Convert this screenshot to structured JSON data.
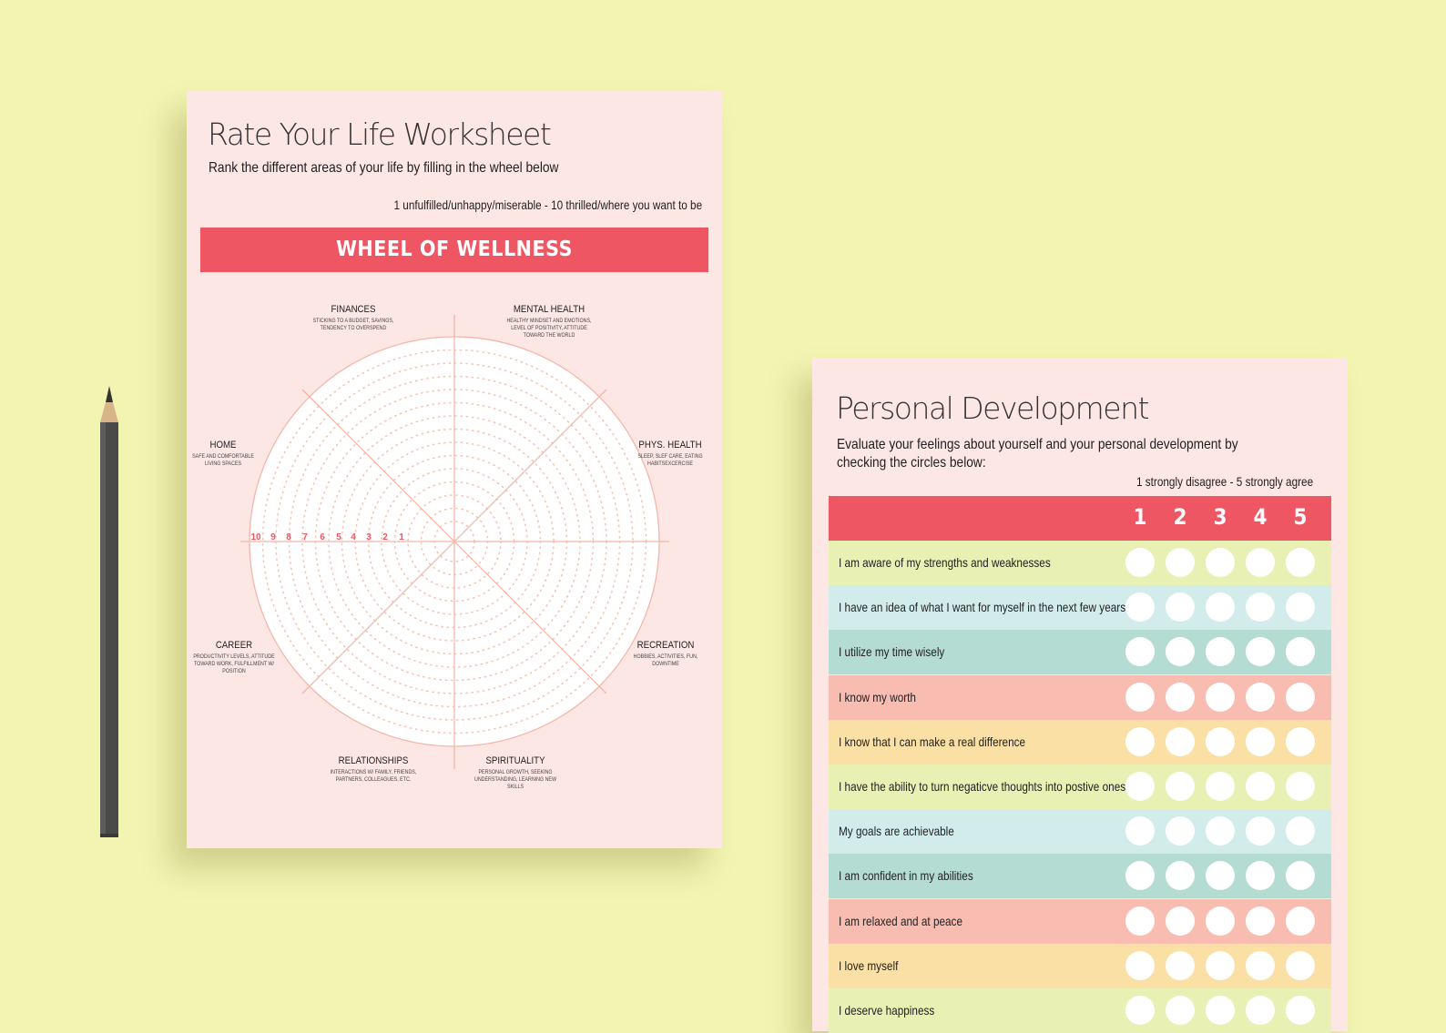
{
  "worksheet": {
    "title": "Rate Your Life Worksheet",
    "subtitle": "Rank the different areas of your life by filling in the wheel below",
    "scale_note": "1 unfulfilled/unhappy/miserable - 10 thrilled/where you want to be",
    "banner": "WHEEL OF WELLNESS",
    "ring_numbers": [
      "10",
      "9",
      "8",
      "7",
      "6",
      "5",
      "4",
      "3",
      "2",
      "1"
    ],
    "areas": [
      {
        "name": "FINANCES",
        "desc": [
          "STICKING TO A BUDGET, SAVINGS,",
          "TENDENCY TO OVERSPEND"
        ]
      },
      {
        "name": "MENTAL HEALTH",
        "desc": [
          "HEALTHY MINDSET AND EMOTIONS,",
          "LEVEL OF POSITIVITY, ATTITUDE",
          "TOWARD THE WORLD"
        ]
      },
      {
        "name": "PHYS. HEALTH",
        "desc": [
          "SLEEP, SLEF CARE, EATING",
          "HABITSEXCERCISE"
        ]
      },
      {
        "name": "RECREATION",
        "desc": [
          "HOBBIES, ACTIVITIES, FUN,",
          "DOWNTIME"
        ]
      },
      {
        "name": "SPIRITUALITY",
        "desc": [
          "PERSONAL GROWTH, SEEKING",
          "UNDERSTANDING, LEARNING NEW",
          "SKILLS"
        ]
      },
      {
        "name": "RELATIONSHIPS",
        "desc": [
          "INTERACTIONS W/ FAMILY, FRIENDS,",
          "PARTNERS, COLLEAGUES, ETC."
        ]
      },
      {
        "name": "CAREER",
        "desc": [
          "PRODUCTIVITY LEVELS, ATTITUDE",
          "TOWARD WORK, FULFILLMENT W/",
          "POSITION"
        ]
      },
      {
        "name": "HOME",
        "desc": [
          "SAFE AND COMFORTABLE",
          "LIVING SPACES"
        ]
      }
    ]
  },
  "development": {
    "title": "Personal Development",
    "subtitle": "Evaluate your feelings about yourself and your personal development by checking the circles below:",
    "scale_note": "1 strongly disagree - 5 strongly agree",
    "columns": [
      "1",
      "2",
      "3",
      "4",
      "5"
    ],
    "rows": [
      {
        "text": "I am aware of my strengths and weaknesses",
        "color": "#e9f0b3"
      },
      {
        "text": "I have an idea of what I want for myself in the next few years",
        "color": "#d2ecec"
      },
      {
        "text": "I utilize my time wisely",
        "color": "#b4dcd3"
      },
      {
        "text": "I know my worth",
        "color": "#f9bcb0"
      },
      {
        "text": "I know that I can make a real difference",
        "color": "#fbe0a6"
      },
      {
        "text": "I have the ability to turn negaticve thoughts into postive ones",
        "color": "#e9f0b3"
      },
      {
        "text": "My goals are achievable",
        "color": "#d2ecec"
      },
      {
        "text": "I am confident in my abilities",
        "color": "#b4dcd3"
      },
      {
        "text": "I am relaxed and at peace",
        "color": "#f9bcb0"
      },
      {
        "text": "I love myself",
        "color": "#fbe0a6"
      },
      {
        "text": "I deserve happiness",
        "color": "#e9f0b3"
      }
    ]
  },
  "colors": {
    "background": "#f2f4b2",
    "paper": "#fde7e4",
    "accent": "#ef5663",
    "wheel_lines": "#f4b6a8"
  }
}
